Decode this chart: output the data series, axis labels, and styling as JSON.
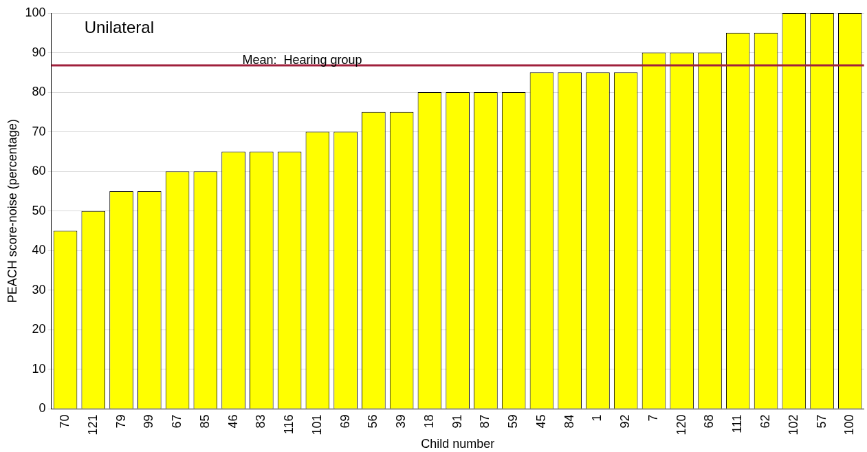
{
  "chart_data": {
    "type": "bar",
    "xlabel": "Child number",
    "ylabel": "PEACH score-noise (percentage)",
    "categories": [
      "70",
      "121",
      "79",
      "99",
      "67",
      "85",
      "46",
      "83",
      "116",
      "101",
      "69",
      "56",
      "39",
      "18",
      "91",
      "87",
      "59",
      "45",
      "84",
      "1",
      "92",
      "7",
      "120",
      "68",
      "111",
      "62",
      "102",
      "57",
      "100"
    ],
    "values": [
      45,
      50,
      55,
      55,
      60,
      60,
      65,
      65,
      65,
      70,
      70,
      75,
      75,
      80,
      80,
      80,
      80,
      85,
      85,
      85,
      85,
      90,
      90,
      90,
      95,
      95,
      100,
      100,
      100
    ],
    "color": "#ffff00",
    "ylim": [
      0,
      100
    ],
    "yticks": [
      0,
      10,
      20,
      30,
      40,
      50,
      60,
      70,
      80,
      90,
      100
    ],
    "grid": "y",
    "legend": false,
    "ref_lines": [
      {
        "axis": "y",
        "value": 86.8,
        "label": "Mean:  Hearing group",
        "color": "#a0203c"
      }
    ],
    "annotations": [
      "Unilateral"
    ]
  }
}
